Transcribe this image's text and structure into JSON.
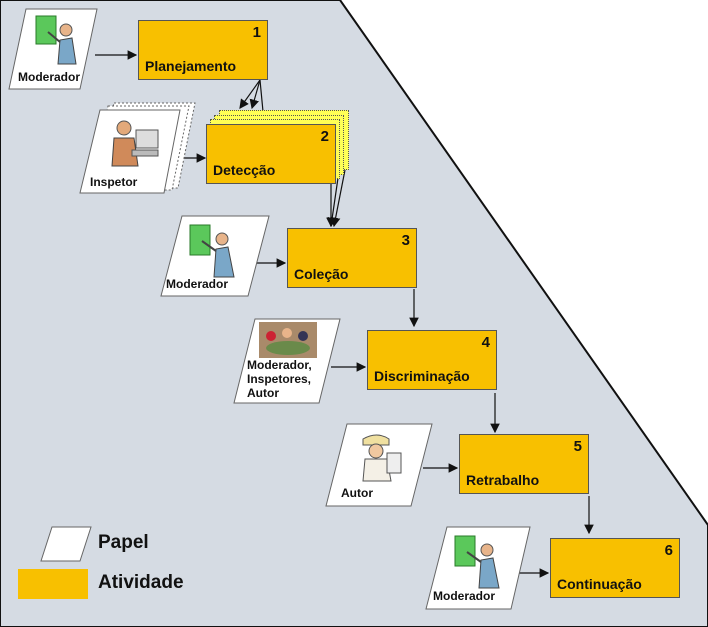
{
  "activities": [
    {
      "number": "1",
      "label": "Planejamento"
    },
    {
      "number": "2",
      "label": "Detecção"
    },
    {
      "number": "3",
      "label": "Coleção"
    },
    {
      "number": "4",
      "label": "Discriminação"
    },
    {
      "number": "5",
      "label": "Retrabalho"
    },
    {
      "number": "6",
      "label": "Continuação"
    }
  ],
  "roles": [
    {
      "label": "Moderador",
      "icon": "presenter-icon"
    },
    {
      "label": "Inspetor",
      "icon": "worker-at-computer-icon"
    },
    {
      "label": "Moderador",
      "icon": "presenter-icon"
    },
    {
      "label": "Moderador,\nInspetores,\nAutor",
      "icon": "meeting-group-icon"
    },
    {
      "label": "Autor",
      "icon": "builder-icon"
    },
    {
      "label": "Moderador",
      "icon": "presenter-icon"
    }
  ],
  "legend": {
    "paper": "Papel",
    "activity": "Atividade"
  },
  "colors": {
    "activity": "#f8c000",
    "activity_stack": "#ffff55",
    "background": "#d5dbe3",
    "paper": "#ffffff"
  }
}
